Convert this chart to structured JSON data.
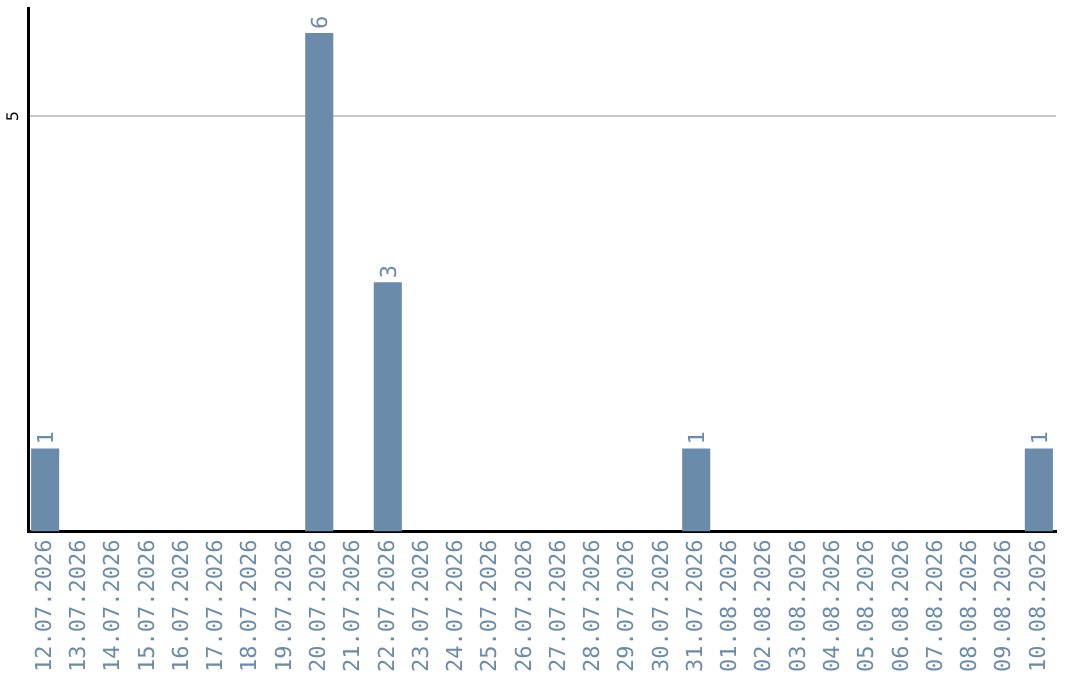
{
  "chart_data": {
    "type": "bar",
    "categories": [
      "12.07.2026",
      "13.07.2026",
      "14.07.2026",
      "15.07.2026",
      "16.07.2026",
      "17.07.2026",
      "18.07.2026",
      "19.07.2026",
      "20.07.2026",
      "21.07.2026",
      "22.07.2026",
      "23.07.2026",
      "24.07.2026",
      "25.07.2026",
      "26.07.2026",
      "27.07.2026",
      "28.07.2026",
      "29.07.2026",
      "30.07.2026",
      "31.07.2026",
      "01.08.2026",
      "02.08.2026",
      "03.08.2026",
      "04.08.2026",
      "05.08.2026",
      "06.08.2026",
      "07.08.2026",
      "08.08.2026",
      "09.08.2026",
      "10.08.2026"
    ],
    "values": [
      1,
      0,
      0,
      0,
      0,
      0,
      0,
      0,
      6,
      0,
      3,
      0,
      0,
      0,
      0,
      0,
      0,
      0,
      0,
      1,
      0,
      0,
      0,
      0,
      0,
      0,
      0,
      0,
      0,
      1
    ],
    "value_labels": [
      "1",
      null,
      null,
      null,
      null,
      null,
      null,
      null,
      "6",
      null,
      "3",
      null,
      null,
      null,
      null,
      null,
      null,
      null,
      null,
      "1",
      null,
      null,
      null,
      null,
      null,
      null,
      null,
      null,
      null,
      "1"
    ],
    "color": "#6a8caa",
    "ylim": [
      0,
      6.3
    ],
    "yticks": [
      5
    ],
    "grid": "y",
    "legend": false
  }
}
